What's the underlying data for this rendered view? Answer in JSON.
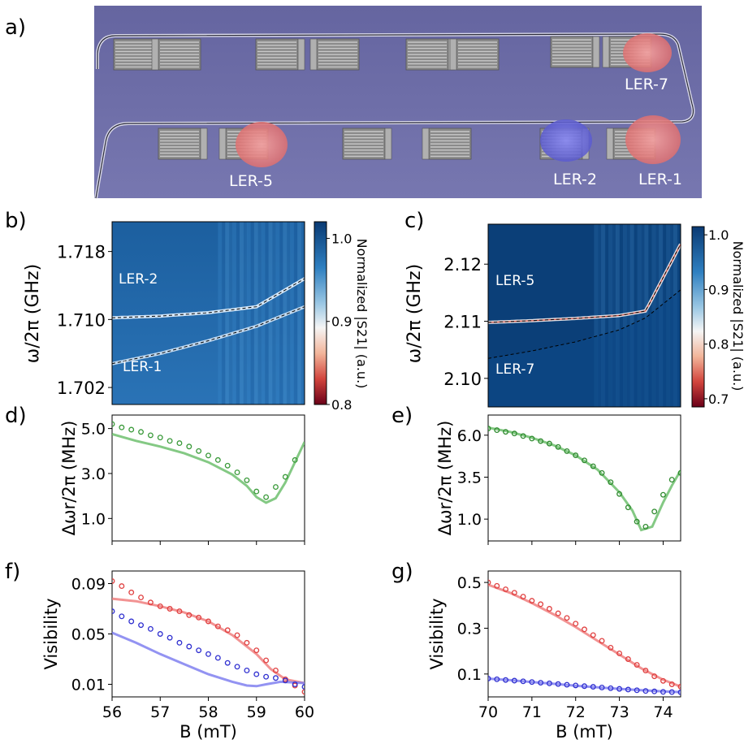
{
  "panel_labels": {
    "a": "a)",
    "b": "b)",
    "c": "c)",
    "d": "d)",
    "e": "e)",
    "f": "f)",
    "g": "g)"
  },
  "device_labels": {
    "ler7": "LER-7",
    "ler5": "LER-5",
    "ler2": "LER-2",
    "ler1": "LER-1"
  },
  "colorbar_b": {
    "label": "Normalized |S21| (a.u.)",
    "ticks": [
      "1.0",
      "0.9",
      "0.8"
    ]
  },
  "colorbar_c": {
    "label": "Normalized |S21| (a.u.)",
    "ticks": [
      "1.0",
      "0.9",
      "0.8",
      "0.7"
    ]
  },
  "colors": {
    "device_bg": "#6f6fa8",
    "red_highlight": "#e8868a",
    "blue_highlight": "#6a6ad8",
    "green": "#6fbf6f",
    "red": "#e04040",
    "blue": "#3030d0",
    "red_line": "#f08080",
    "blue_line": "#8080f0",
    "map_dark": "#0b3f78",
    "map_mid": "#2a74b8"
  },
  "chart_data": [
    {
      "panel": "b",
      "type": "heatmap",
      "ylabel": "ω/2π (GHz)",
      "yticks": [
        "1.718",
        "1.710",
        "1.702"
      ],
      "ylim": [
        1.7,
        1.7215
      ],
      "annotations": [
        "LER-2",
        "LER-1"
      ],
      "series": [
        {
          "name": "LER-2",
          "x": [
            56,
            57,
            58,
            59,
            60
          ],
          "y": [
            1.7102,
            1.7104,
            1.7108,
            1.7115,
            1.7148
          ]
        },
        {
          "name": "LER-1",
          "x": [
            56,
            57,
            58,
            59,
            60
          ],
          "y": [
            1.7048,
            1.706,
            1.7075,
            1.7092,
            1.7115
          ]
        }
      ]
    },
    {
      "panel": "c",
      "type": "heatmap",
      "ylabel": "ω/2π (GHz)",
      "yticks": [
        "2.12",
        "2.11",
        "2.10"
      ],
      "ylim": [
        2.095,
        2.127
      ],
      "annotations": [
        "LER-5",
        "LER-7"
      ],
      "series": [
        {
          "name": "LER-5",
          "x": [
            70,
            71,
            72,
            73,
            73.6,
            74.4
          ],
          "y": [
            2.1098,
            2.1101,
            2.1105,
            2.111,
            2.1118,
            2.1235
          ]
        },
        {
          "name": "LER-7",
          "x": [
            70,
            71,
            72,
            73,
            73.6,
            74.4
          ],
          "y": [
            2.1035,
            2.1048,
            2.1064,
            2.1085,
            2.1106,
            2.1155
          ]
        }
      ]
    },
    {
      "panel": "d",
      "type": "line",
      "ylabel": "Δωr/2π (MHz)",
      "yticks": [
        "5.0",
        "3.0",
        "1.0"
      ],
      "xlim": [
        56,
        60
      ],
      "ylim": [
        0.0,
        5.6
      ],
      "points": {
        "x": [
          56,
          56.2,
          56.4,
          56.6,
          56.8,
          57,
          57.2,
          57.4,
          57.6,
          57.8,
          58,
          58.2,
          58.4,
          58.6,
          58.8,
          59,
          59.2,
          59.4,
          59.6,
          59.8
        ],
        "y": [
          5.2,
          5.05,
          4.95,
          4.85,
          4.7,
          4.6,
          4.45,
          4.35,
          4.2,
          4.0,
          3.8,
          3.6,
          3.35,
          3.05,
          2.7,
          2.2,
          1.95,
          2.4,
          2.85,
          3.6
        ]
      },
      "fit": {
        "x": [
          56,
          56.5,
          57,
          57.5,
          58,
          58.5,
          58.8,
          59,
          59.2,
          59.4,
          59.6,
          59.8,
          60
        ],
        "y": [
          4.75,
          4.45,
          4.2,
          3.9,
          3.5,
          2.95,
          2.45,
          1.95,
          1.7,
          1.9,
          2.6,
          3.5,
          4.4
        ]
      }
    },
    {
      "panel": "e",
      "type": "line",
      "ylabel": "Δωr/2π (MHz)",
      "yticks": [
        "6.0",
        "3.5",
        "1.0"
      ],
      "xlim": [
        70,
        74.4
      ],
      "ylim": [
        -0.3,
        7.2
      ],
      "points": {
        "x": [
          70,
          70.2,
          70.4,
          70.6,
          70.8,
          71,
          71.2,
          71.4,
          71.6,
          71.8,
          72,
          72.2,
          72.4,
          72.6,
          72.8,
          73,
          73.2,
          73.4,
          73.6,
          73.8,
          74,
          74.2,
          74.4
        ],
        "y": [
          6.4,
          6.3,
          6.2,
          6.1,
          5.95,
          5.8,
          5.65,
          5.5,
          5.3,
          5.05,
          4.8,
          4.5,
          4.15,
          3.75,
          3.2,
          2.5,
          1.7,
          0.85,
          0.55,
          1.45,
          2.45,
          3.35,
          3.75
        ]
      },
      "fit": {
        "x": [
          70,
          70.5,
          71,
          71.5,
          72,
          72.5,
          73,
          73.3,
          73.5,
          73.75,
          74,
          74.2,
          74.4
        ],
        "y": [
          6.45,
          6.2,
          5.85,
          5.4,
          4.8,
          3.95,
          2.6,
          1.5,
          0.35,
          0.55,
          2.0,
          3.0,
          3.9
        ]
      }
    },
    {
      "panel": "f",
      "type": "line",
      "xlabel": "B (mT)",
      "ylabel": "Visibility",
      "xticks": [
        "56",
        "57",
        "58",
        "59",
        "60"
      ],
      "yticks": [
        "0.09",
        "0.05",
        "0.01"
      ],
      "xlim": [
        56,
        60
      ],
      "ylim": [
        0.0,
        0.1
      ],
      "points_red": {
        "x": [
          56,
          56.2,
          56.4,
          56.6,
          56.8,
          57,
          57.2,
          57.4,
          57.6,
          57.8,
          58,
          58.2,
          58.4,
          58.6,
          58.8,
          59,
          59.2,
          59.4,
          59.6,
          59.8,
          60
        ],
        "y": [
          0.092,
          0.088,
          0.083,
          0.079,
          0.075,
          0.072,
          0.07,
          0.068,
          0.065,
          0.063,
          0.06,
          0.056,
          0.053,
          0.049,
          0.043,
          0.037,
          0.029,
          0.021,
          0.014,
          0.009,
          0.004
        ]
      },
      "points_blue": {
        "x": [
          56,
          56.2,
          56.4,
          56.6,
          56.8,
          57,
          57.2,
          57.4,
          57.6,
          57.8,
          58,
          58.2,
          58.4,
          58.6,
          58.8,
          59,
          59.2,
          59.4,
          59.6,
          59.8,
          60
        ],
        "y": [
          0.068,
          0.064,
          0.06,
          0.057,
          0.054,
          0.05,
          0.047,
          0.043,
          0.04,
          0.037,
          0.034,
          0.031,
          0.027,
          0.024,
          0.021,
          0.018,
          0.016,
          0.015,
          0.013,
          0.01,
          0.008
        ]
      },
      "fit_red": {
        "x": [
          56,
          56.5,
          57,
          57.5,
          58,
          58.5,
          59,
          59.3,
          59.6,
          60
        ],
        "y": [
          0.078,
          0.076,
          0.072,
          0.067,
          0.06,
          0.049,
          0.034,
          0.022,
          0.014,
          0.011
        ]
      },
      "fit_blue": {
        "x": [
          56,
          56.5,
          57,
          57.5,
          58,
          58.5,
          58.8,
          59,
          59.2,
          59.5,
          60
        ],
        "y": [
          0.051,
          0.043,
          0.034,
          0.026,
          0.018,
          0.012,
          0.009,
          0.0085,
          0.01,
          0.012,
          0.011
        ]
      }
    },
    {
      "panel": "g",
      "type": "line",
      "xlabel": "B (mT)",
      "ylabel": "Visibility",
      "xticks": [
        "70",
        "71",
        "72",
        "73",
        "74"
      ],
      "yticks": [
        "0.5",
        "0.3",
        "0.1"
      ],
      "xlim": [
        70,
        74.4
      ],
      "ylim": [
        0.0,
        0.55
      ],
      "points_red": {
        "x": [
          70,
          70.2,
          70.4,
          70.6,
          70.8,
          71,
          71.2,
          71.4,
          71.6,
          71.8,
          72,
          72.2,
          72.4,
          72.6,
          72.8,
          73,
          73.2,
          73.4,
          73.6,
          73.8,
          74,
          74.2,
          74.4
        ],
        "y": [
          0.5,
          0.485,
          0.47,
          0.455,
          0.438,
          0.42,
          0.405,
          0.385,
          0.365,
          0.345,
          0.32,
          0.295,
          0.27,
          0.245,
          0.215,
          0.19,
          0.165,
          0.14,
          0.115,
          0.09,
          0.07,
          0.055,
          0.045
        ]
      },
      "points_blue": {
        "x": [
          70,
          70.2,
          70.4,
          70.6,
          70.8,
          71,
          71.2,
          71.4,
          71.6,
          71.8,
          72,
          72.2,
          72.4,
          72.6,
          72.8,
          73,
          73.2,
          73.4,
          73.6,
          73.8,
          74,
          74.2,
          74.4
        ],
        "y": [
          0.08,
          0.077,
          0.074,
          0.071,
          0.068,
          0.065,
          0.062,
          0.059,
          0.056,
          0.053,
          0.05,
          0.047,
          0.044,
          0.041,
          0.038,
          0.035,
          0.032,
          0.029,
          0.026,
          0.024,
          0.022,
          0.021,
          0.02
        ]
      },
      "fit_red": {
        "x": [
          70,
          70.5,
          71,
          71.5,
          72,
          72.5,
          73,
          73.5,
          74,
          74.4
        ],
        "y": [
          0.49,
          0.455,
          0.41,
          0.36,
          0.305,
          0.245,
          0.185,
          0.125,
          0.075,
          0.045
        ]
      },
      "fit_blue": {
        "x": [
          70,
          70.5,
          71,
          71.5,
          72,
          72.5,
          73,
          73.5,
          74,
          74.4
        ],
        "y": [
          0.08,
          0.073,
          0.065,
          0.057,
          0.049,
          0.042,
          0.035,
          0.029,
          0.024,
          0.021
        ]
      }
    }
  ]
}
